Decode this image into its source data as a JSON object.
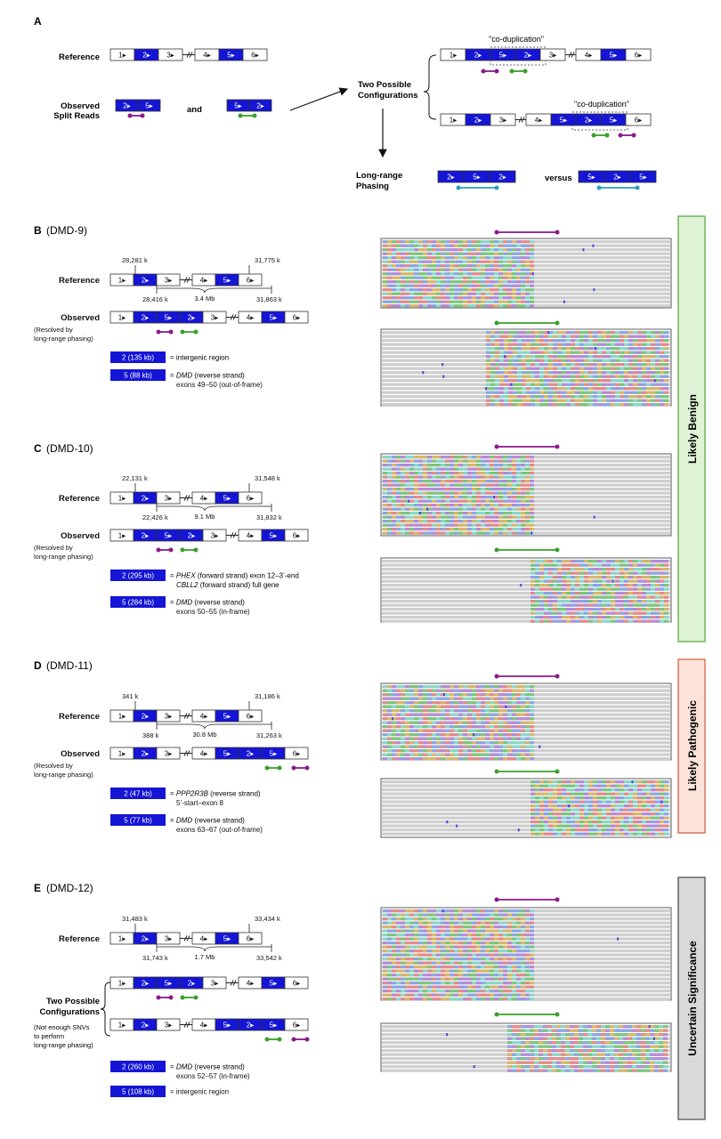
{
  "colors": {
    "exon_blue": "#1515d6",
    "purple": "#8a1a8a",
    "green": "#3aa02a",
    "teal": "#2a9ec0",
    "benign_bg": "#dff3d7",
    "benign_border": "#6bb55a",
    "pathogenic_bg": "#fbe3d9",
    "pathogenic_border": "#d9775a",
    "uncertain_bg": "#d9d9d9",
    "uncertain_border": "#666666"
  },
  "panel_a": {
    "letter": "A",
    "reference_label": "Reference",
    "observed_label_1": "Observed",
    "observed_label_2": "Split Reads",
    "and_label": "and",
    "two_possible_1": "Two Possible",
    "two_possible_2": "Configurations",
    "coduplication": "\"co-duplication\"",
    "long_range_1": "Long-range",
    "long_range_2": "Phasing",
    "versus": "versus"
  },
  "exons": {
    "e1": "1▸",
    "e2": "2▸",
    "e3": "3▸",
    "e4": "4▸",
    "e5": "5▸",
    "e6": "6▸"
  },
  "common": {
    "reference": "Reference",
    "observed": "Observed",
    "resolved_1": "(Resolved by",
    "resolved_2": "long-range phasing)"
  },
  "panel_b": {
    "letter": "B",
    "sample": "(DMD-9)",
    "c1": "28,281 k",
    "c2": "28,416 k",
    "c3": "31,775 k",
    "c4": "31,863 k",
    "dist": "3.4 Mb",
    "leg2_box": "2 (135 kb)",
    "leg2_text": "= intergenic region",
    "leg5_box": "5 (88 kb)",
    "leg5_gene": "DMD",
    "leg5_text": " (reverse strand)",
    "leg5_text2": "exons 49–50 (out-of-frame)"
  },
  "panel_c": {
    "letter": "C",
    "sample": "(DMD-10)",
    "c1": "22,131 k",
    "c2": "22,426 k",
    "c3": "31,548 k",
    "c4": "31,832 k",
    "dist": "9.1 Mb",
    "leg2_box": "2 (295 kb)",
    "leg2_gene": "PHEX",
    "leg2_text": " (forward strand) exon 12–3’-end",
    "leg2_gene2": "CBLL2",
    "leg2_text2": " (forward strand) full gene",
    "leg5_box": "5 (284 kb)",
    "leg5_gene": "DMD",
    "leg5_text": " (reverse strand)",
    "leg5_text2": "exons 50–55 (in-frame)"
  },
  "panel_d": {
    "letter": "D",
    "sample": "(DMD-11)",
    "c1": "341 k",
    "c2": "388 k",
    "c3": "31,186 k",
    "c4": "31,263 k",
    "dist": "30.8 Mb",
    "leg2_box": "2 (47 kb)",
    "leg2_gene": "PPP2R3B",
    "leg2_text": " (reverse strand)",
    "leg2_text2": "5’-start–exon 8",
    "leg5_box": "5 (77 kb)",
    "leg5_gene": "DMD",
    "leg5_text": " (reverse strand)",
    "leg5_text2": "exons 63–67 (out-of-frame)"
  },
  "panel_e": {
    "letter": "E",
    "sample": "(DMD-12)",
    "c1": "31,483 k",
    "c2": "31,743 k",
    "c3": "33,434 k",
    "c4": "33,542 k",
    "dist": "1.7 Mb",
    "two_possible_1": "Two Possible",
    "two_possible_2": "Configurations",
    "note_1": "(Not enough SNVs",
    "note_2": "to perform",
    "note_3": "long-range phasing)",
    "leg2_box": "2 (260 kb)",
    "leg2_gene": "DMD",
    "leg2_text": " (reverse strand)",
    "leg2_text2": "exons 52–57 (in-frame)",
    "leg5_box": "5 (108 kb)",
    "leg5_text": "= intergenic region"
  },
  "classifications": {
    "benign": "Likely Benign",
    "pathogenic": "Likely Pathogenic",
    "uncertain": "Uncertain Significance"
  }
}
